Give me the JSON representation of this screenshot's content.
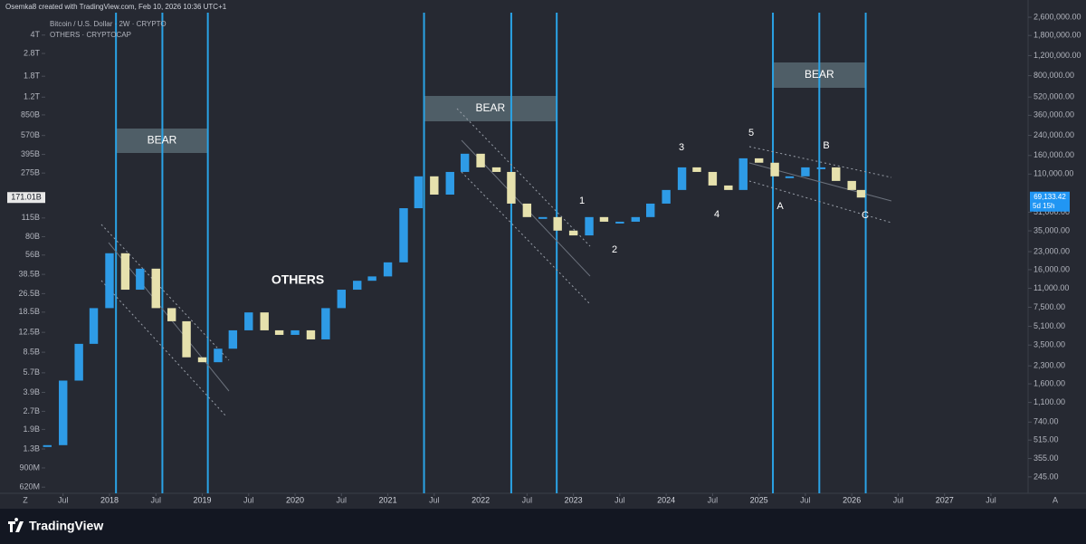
{
  "header": {
    "credit": "Osemka8 created with TradingView.com, Feb 10, 2026 10:36 UTC+1",
    "symbol": "Bitcoin / U.S. Dollar · 2W · CRYPTO",
    "overlay": "OTHERS · CRYPTOCAP"
  },
  "chart_data": {
    "type": "candlestick",
    "log_scale": true,
    "x": [
      2017.33,
      2017.5,
      2017.67,
      2017.83,
      2018.0,
      2018.17,
      2018.33,
      2018.5,
      2018.67,
      2018.83,
      2019.0,
      2019.17,
      2019.33,
      2019.5,
      2019.67,
      2019.83,
      2020.0,
      2020.17,
      2020.33,
      2020.5,
      2020.67,
      2020.83,
      2021.0,
      2021.17,
      2021.33,
      2021.5,
      2021.67,
      2021.83,
      2022.0,
      2022.17,
      2022.33,
      2022.5,
      2022.67,
      2022.83,
      2023.0,
      2023.17,
      2023.33,
      2023.5,
      2023.67,
      2023.83,
      2024.0,
      2024.17,
      2024.33,
      2024.5,
      2024.67,
      2024.83,
      2025.0,
      2025.17,
      2025.33,
      2025.5,
      2025.67,
      2025.83,
      2026.0,
      2026.1
    ],
    "series": [
      {
        "name": "OTHERS · CRYPTOCAP",
        "up_color": "#2e9be6",
        "down_color": "#e6e1ad",
        "values": [
          1400000000.0,
          4900000000.0,
          10000000000.0,
          20000000000.0,
          58000000000.0,
          28600000000.0,
          43000000000.0,
          20000000000.0,
          15500000000.0,
          7700000000.0,
          7000000000.0,
          9100000000.0,
          13000000000.0,
          18400000000.0,
          13000000000.0,
          11900000000.0,
          13000000000.0,
          10900000000.0,
          20000000000.0,
          28600000000.0,
          34000000000.0,
          37000000000.0,
          48600000000.0,
          139000000000.0,
          258000000000.0,
          181000000000.0,
          281000000000.0,
          400000000000.0,
          307000000000.0,
          281000000000.0,
          152000000000.0,
          117000000000.0,
          117000000000.0,
          90000000000.0,
          82000000000.0,
          117000000000.0,
          107000000000.0,
          107000000000.0,
          117000000000.0,
          152000000000.0,
          198000000000.0,
          307000000000.0,
          281000000000.0,
          216000000000.0,
          198000000000.0,
          366000000000.0,
          336000000000.0,
          258000000000.0,
          258000000000.0,
          307000000000.0,
          307000000000.0,
          236000000000.0,
          198000000000.0,
          171000000000.0
        ]
      }
    ],
    "last_value_label": "171.01B",
    "xlim": [
      2016.82,
      2027.9
    ],
    "xticks": [
      {
        "value": 2017.5,
        "label": "Jul"
      },
      2018,
      {
        "value": 2018.5,
        "label": "Jul"
      },
      2019,
      {
        "value": 2019.5,
        "label": "Jul"
      },
      2020,
      {
        "value": 2020.5,
        "label": "Jul"
      },
      2021,
      {
        "value": 2021.5,
        "label": "Jul"
      },
      2022,
      {
        "value": 2022.5,
        "label": "Jul"
      },
      2023,
      {
        "value": 2023.5,
        "label": "Jul"
      },
      2024,
      {
        "value": 2024.5,
        "label": "Jul"
      },
      2025,
      {
        "value": 2025.5,
        "label": "Jul"
      },
      2026,
      {
        "value": 2026.5,
        "label": "Jul"
      },
      2027,
      {
        "value": 2027.5,
        "label": "Jul"
      }
    ],
    "ylim": [
      550000000.0,
      7900000000000.0
    ],
    "yticks": [
      {
        "value": 4000000000000.0,
        "label": "4T"
      },
      {
        "value": 2800000000000.0,
        "label": "2.8T"
      },
      {
        "value": 1800000000000.0,
        "label": "1.8T"
      },
      {
        "value": 1200000000000.0,
        "label": "1.2T"
      },
      {
        "value": 850000000000.0,
        "label": "850B"
      },
      {
        "value": 570000000000.0,
        "label": "570B"
      },
      {
        "value": 395000000000.0,
        "label": "395B"
      },
      {
        "value": 275000000000.0,
        "label": "275B"
      },
      {
        "value": 115000000000.0,
        "label": "115B"
      },
      {
        "value": 80000000000.0,
        "label": "80B"
      },
      {
        "value": 56000000000.0,
        "label": "56B"
      },
      {
        "value": 38500000000.0,
        "label": "38.5B"
      },
      {
        "value": 26500000000.0,
        "label": "26.5B"
      },
      {
        "value": 18500000000.0,
        "label": "18.5B"
      },
      {
        "value": 12500000000.0,
        "label": "12.5B"
      },
      {
        "value": 8500000000.0,
        "label": "8.5B"
      },
      {
        "value": 5700000000.0,
        "label": "5.7B"
      },
      {
        "value": 3900000000.0,
        "label": "3.9B"
      },
      {
        "value": 2700000000.0,
        "label": "2.7B"
      },
      {
        "value": 1900000000.0,
        "label": "1.9B"
      },
      {
        "value": 1300000000.0,
        "label": "1.3B"
      },
      {
        "value": 900000000.0,
        "label": "900M"
      },
      {
        "value": 620000000.0,
        "label": "620M"
      }
    ],
    "y2lim": [
      176,
      3680000
    ],
    "y2ticks": [
      {
        "value": 2600000,
        "label": "2,600,000.00"
      },
      {
        "value": 1800000,
        "label": "1,800,000.00"
      },
      {
        "value": 1200000,
        "label": "1,200,000.00"
      },
      {
        "value": 800000,
        "label": "800,000.00"
      },
      {
        "value": 520000,
        "label": "520,000.00"
      },
      {
        "value": 360000,
        "label": "360,000.00"
      },
      {
        "value": 240000,
        "label": "240,000.00"
      },
      {
        "value": 160000,
        "label": "160,000.00"
      },
      {
        "value": 110000,
        "label": "110,000.00"
      },
      {
        "value": 51000,
        "label": "51,000.00"
      },
      {
        "value": 35000,
        "label": "35,000.00"
      },
      {
        "value": 23000,
        "label": "23,000.00"
      },
      {
        "value": 16000,
        "label": "16,000.00"
      },
      {
        "value": 11000,
        "label": "11,000.00"
      },
      {
        "value": 7500,
        "label": "7,500.00"
      },
      {
        "value": 5100,
        "label": "5,100.00"
      },
      {
        "value": 3500,
        "label": "3,500.00"
      },
      {
        "value": 2300,
        "label": "2,300.00"
      },
      {
        "value": 1600,
        "label": "1,600.00"
      },
      {
        "value": 1100,
        "label": "1,100.00"
      },
      {
        "value": 740,
        "label": "740.00"
      },
      {
        "value": 515,
        "label": "515.00"
      },
      {
        "value": 355,
        "label": "355.00"
      },
      {
        "value": 245,
        "label": "245.00"
      }
    ],
    "price_tag": {
      "value": 69133.42,
      "label": "69,133.42",
      "countdown": "5d 15h"
    },
    "vlines": [
      2018.07,
      2018.57,
      2019.06,
      2021.39,
      2022.33,
      2022.82,
      2025.15,
      2025.65,
      2026.15
    ],
    "vline_color": "#2aa3e6",
    "zones": [
      {
        "label": "BEAR",
        "x": [
          2018.07,
          2019.06
        ]
      },
      {
        "label": "BEAR",
        "x": [
          2021.39,
          2022.82
        ]
      },
      {
        "label": "BEAR",
        "x": [
          2025.15,
          2026.15
        ]
      }
    ],
    "annotations": [
      "OTHERS",
      "1",
      "2",
      "3",
      "4",
      "5",
      "A",
      "B",
      "C"
    ]
  },
  "axis_buttons": [
    "Z",
    "A"
  ],
  "footer": {
    "brand": "TradingView"
  }
}
